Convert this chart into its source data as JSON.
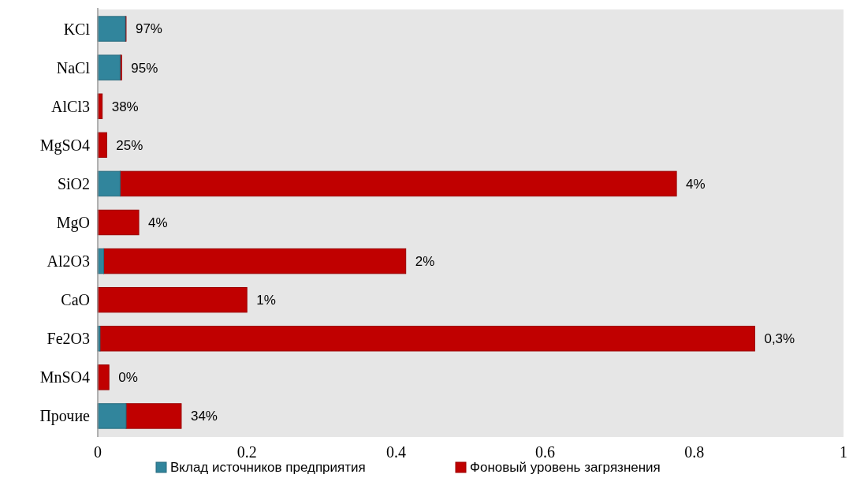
{
  "chart_data": {
    "type": "bar",
    "orientation": "horizontal",
    "stacked": true,
    "categories": [
      "KCl",
      "NaCl",
      "AlCl3",
      "MgSO4",
      "SiO2",
      "MgO",
      "Al2O3",
      "CaO",
      "Fe2O3",
      "MnSO4",
      "Прочие"
    ],
    "series": [
      {
        "name": "Вклад источников предприятия",
        "color": "#31859c",
        "values": [
          0.037,
          0.03,
          0,
          0,
          0.03,
          0,
          0.008,
          0,
          0.003,
          0,
          0.038
        ]
      },
      {
        "name": "Фоновый уровень загрязнения",
        "color": "#c00000",
        "values": [
          0.001,
          0.002,
          0.006,
          0.012,
          0.746,
          0.055,
          0.405,
          0.2,
          0.878,
          0.015,
          0.074
        ]
      }
    ],
    "annotations": [
      {
        "text": "97%",
        "x": 0.038,
        "y": "KCl"
      },
      {
        "text": "95%",
        "x": 0.032,
        "y": "NaCl"
      },
      {
        "text": "38%",
        "x": 0.006,
        "y": "AlCl3"
      },
      {
        "text": "25%",
        "x": 0.012,
        "y": "MgSO4"
      },
      {
        "text": "4%",
        "x": 0.776,
        "y": "SiO2"
      },
      {
        "text": "4%",
        "x": 0.055,
        "y": "MgO"
      },
      {
        "text": "2%",
        "x": 0.413,
        "y": "Al2O3"
      },
      {
        "text": "1%",
        "x": 0.2,
        "y": "CaO"
      },
      {
        "text": "0,3%",
        "x": 0.881,
        "y": "Fe2O3"
      },
      {
        "text": "0%",
        "x": 0.015,
        "y": "MnSO4"
      },
      {
        "text": "34%",
        "x": 0.112,
        "y": "Прочие"
      }
    ],
    "xlim": [
      0,
      1
    ],
    "xticks": [
      0,
      0.2,
      0.4,
      0.6,
      0.8,
      1
    ],
    "grid": false,
    "legend": "bottom"
  }
}
